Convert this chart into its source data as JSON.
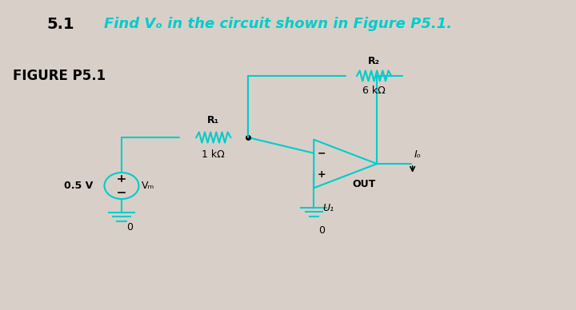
{
  "title": "5.1",
  "title_text": "Find Vₒ in the circuit shown in Figure P5.1.",
  "figure_label": "FIGURE P5.1",
  "bg_color": "#d8d0c8",
  "title_color": "#00cccc",
  "label_color": "#000000",
  "circuit_color": "#00cccc",
  "circuit_dark": "#000000",
  "vs_label": "0.5 V",
  "vs_sublabel": "Vₘ",
  "r1_label": "R₁",
  "r1_value": "1 kΩ",
  "r2_label": "R₂",
  "r2_value": "6 kΩ",
  "out_label": "OUT",
  "u1_label": "U₁",
  "io_label": "Iₒ",
  "ground_label": "0"
}
